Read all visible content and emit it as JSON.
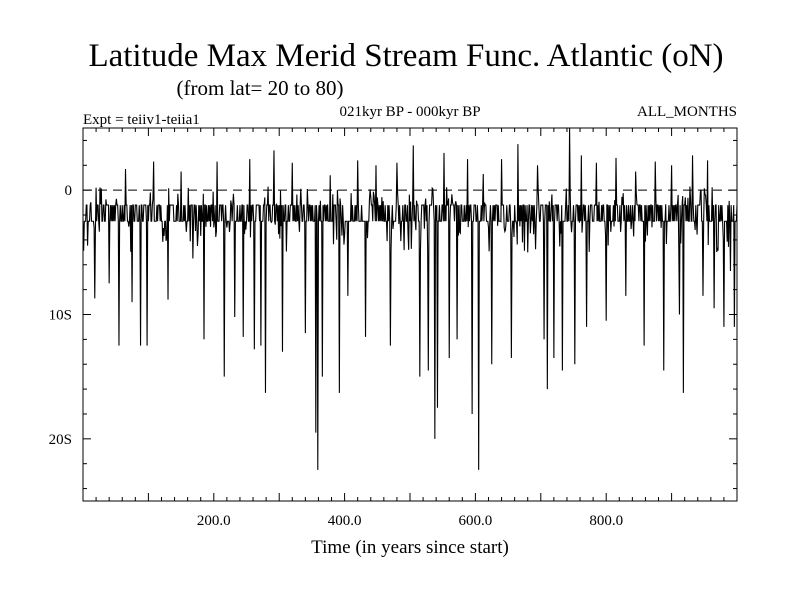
{
  "chart_data": {
    "type": "line",
    "title": "Latitude Max Merid Stream Func. Atlantic (oN)",
    "subtitle": "(from lat= 20 to 80)",
    "left_label": "Expt = teiiv1-teiia1",
    "center_label": "021kyr BP - 000kyr BP",
    "right_label": "ALL_MONTHS",
    "xlabel": "Time (in years since start)",
    "ylabel": "",
    "xlim": [
      0,
      1000
    ],
    "ylim": [
      -25,
      5
    ],
    "x_ticks": [
      {
        "value": 200,
        "label": "200.0"
      },
      {
        "value": 400,
        "label": "400.0"
      },
      {
        "value": 600,
        "label": "600.0"
      },
      {
        "value": 800,
        "label": "800.0"
      }
    ],
    "y_ticks": [
      {
        "value": 0,
        "label": "0"
      },
      {
        "value": -10,
        "label": "10S"
      },
      {
        "value": -20,
        "label": "20S"
      }
    ],
    "reference_line": {
      "value": 0,
      "style": "dashed"
    },
    "grid": false,
    "line_color": "#000000",
    "baseline_range": [
      -2.5,
      -1.2
    ],
    "spikes": [
      {
        "x": 18,
        "y": -8.7
      },
      {
        "x": 40,
        "y": -7.5
      },
      {
        "x": 55,
        "y": -12.5
      },
      {
        "x": 65,
        "y": 1.7
      },
      {
        "x": 75,
        "y": -9.0
      },
      {
        "x": 88,
        "y": -12.5
      },
      {
        "x": 98,
        "y": -12.5
      },
      {
        "x": 108,
        "y": 2.3
      },
      {
        "x": 130,
        "y": -8.8
      },
      {
        "x": 150,
        "y": 1.5
      },
      {
        "x": 168,
        "y": -5.5
      },
      {
        "x": 185,
        "y": -12.0
      },
      {
        "x": 205,
        "y": 2.3
      },
      {
        "x": 216,
        "y": -15.0
      },
      {
        "x": 232,
        "y": -10.2
      },
      {
        "x": 245,
        "y": -11.8
      },
      {
        "x": 255,
        "y": 2.5
      },
      {
        "x": 262,
        "y": -12.8
      },
      {
        "x": 272,
        "y": -12.5
      },
      {
        "x": 279,
        "y": -16.3
      },
      {
        "x": 292,
        "y": 3.2
      },
      {
        "x": 305,
        "y": -13.0
      },
      {
        "x": 320,
        "y": 2.2
      },
      {
        "x": 340,
        "y": -11.5
      },
      {
        "x": 356,
        "y": -19.5
      },
      {
        "x": 359,
        "y": -22.5
      },
      {
        "x": 366,
        "y": -15.0
      },
      {
        "x": 378,
        "y": 1.2
      },
      {
        "x": 392,
        "y": -16.3
      },
      {
        "x": 405,
        "y": -8.5
      },
      {
        "x": 420,
        "y": 2.4
      },
      {
        "x": 432,
        "y": -11.8
      },
      {
        "x": 448,
        "y": 2.0
      },
      {
        "x": 470,
        "y": -12.5
      },
      {
        "x": 480,
        "y": 2.2
      },
      {
        "x": 497,
        "y": -3.5
      },
      {
        "x": 505,
        "y": 3.6
      },
      {
        "x": 515,
        "y": -15.0
      },
      {
        "x": 528,
        "y": -14.5
      },
      {
        "x": 538,
        "y": -20.0
      },
      {
        "x": 542,
        "y": -17.5
      },
      {
        "x": 552,
        "y": 3.0
      },
      {
        "x": 560,
        "y": -13.5
      },
      {
        "x": 572,
        "y": -12.0
      },
      {
        "x": 588,
        "y": 2.5
      },
      {
        "x": 595,
        "y": -18.0
      },
      {
        "x": 605,
        "y": -22.5
      },
      {
        "x": 612,
        "y": 1.3
      },
      {
        "x": 625,
        "y": -14.0
      },
      {
        "x": 640,
        "y": 2.5
      },
      {
        "x": 655,
        "y": -13.5
      },
      {
        "x": 665,
        "y": 3.7
      },
      {
        "x": 680,
        "y": -5.0
      },
      {
        "x": 695,
        "y": 2.0
      },
      {
        "x": 705,
        "y": -12.0
      },
      {
        "x": 710,
        "y": -16.0
      },
      {
        "x": 720,
        "y": -13.5
      },
      {
        "x": 733,
        "y": -14.5
      },
      {
        "x": 744,
        "y": 5.0
      },
      {
        "x": 752,
        "y": -14.0
      },
      {
        "x": 762,
        "y": 2.8
      },
      {
        "x": 770,
        "y": -11.0
      },
      {
        "x": 785,
        "y": 2.2
      },
      {
        "x": 800,
        "y": -10.5
      },
      {
        "x": 815,
        "y": 2.6
      },
      {
        "x": 830,
        "y": -8.5
      },
      {
        "x": 845,
        "y": 1.5
      },
      {
        "x": 858,
        "y": -12.5
      },
      {
        "x": 875,
        "y": 2.3
      },
      {
        "x": 888,
        "y": -14.5
      },
      {
        "x": 900,
        "y": 2.0
      },
      {
        "x": 912,
        "y": -10.0
      },
      {
        "x": 918,
        "y": -16.3
      },
      {
        "x": 932,
        "y": 2.8
      },
      {
        "x": 948,
        "y": -8.5
      },
      {
        "x": 955,
        "y": 2.4
      },
      {
        "x": 965,
        "y": -9.5
      },
      {
        "x": 980,
        "y": -11.0
      },
      {
        "x": 990,
        "y": -6.5
      },
      {
        "x": 996,
        "y": -11.0
      }
    ]
  }
}
